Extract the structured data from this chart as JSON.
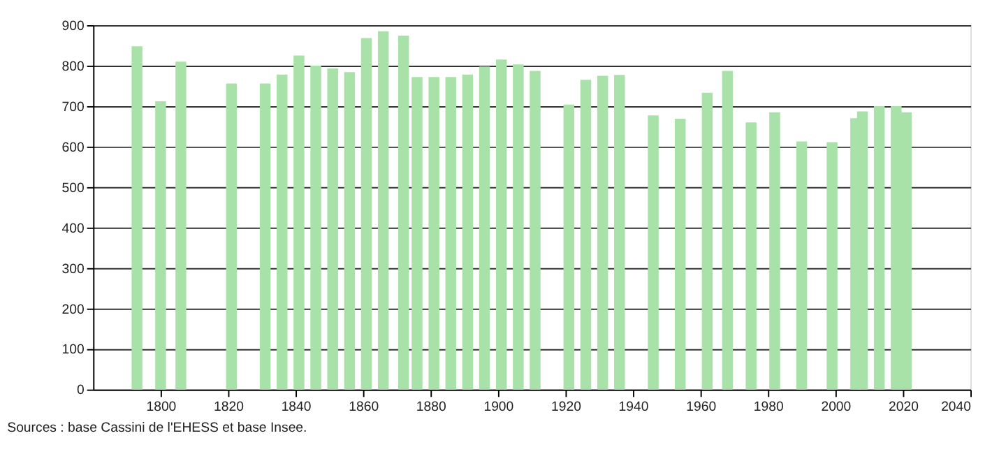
{
  "chart_data": {
    "type": "bar",
    "x": [
      1793,
      1800,
      1806,
      1821,
      1831,
      1836,
      1841,
      1846,
      1851,
      1856,
      1861,
      1866,
      1872,
      1876,
      1881,
      1886,
      1891,
      1896,
      1901,
      1906,
      1911,
      1921,
      1926,
      1931,
      1936,
      1946,
      1954,
      1962,
      1968,
      1975,
      1982,
      1990,
      1999,
      2006,
      2008,
      2013,
      2018,
      2021
    ],
    "values": [
      848,
      712,
      810,
      756,
      756,
      778,
      825,
      800,
      793,
      784,
      868,
      885,
      874,
      772,
      772,
      772,
      778,
      798,
      815,
      803,
      787,
      704,
      765,
      775,
      777,
      677,
      669,
      733,
      787,
      660,
      685,
      613,
      611,
      670,
      687,
      700,
      700,
      685
    ],
    "color": "#a8e2a8",
    "xlim": [
      1780,
      2040
    ],
    "xticks": [
      1800,
      1820,
      1840,
      1860,
      1880,
      1900,
      1920,
      1940,
      1960,
      1980,
      2000,
      2020,
      2040
    ],
    "ylim": [
      0,
      900
    ],
    "yticks": [
      0,
      100,
      200,
      300,
      400,
      500,
      600,
      700,
      800,
      900
    ],
    "grid": "y",
    "annotations": [
      "Sources : base Cassini de l'EHESS et base Insee."
    ]
  }
}
